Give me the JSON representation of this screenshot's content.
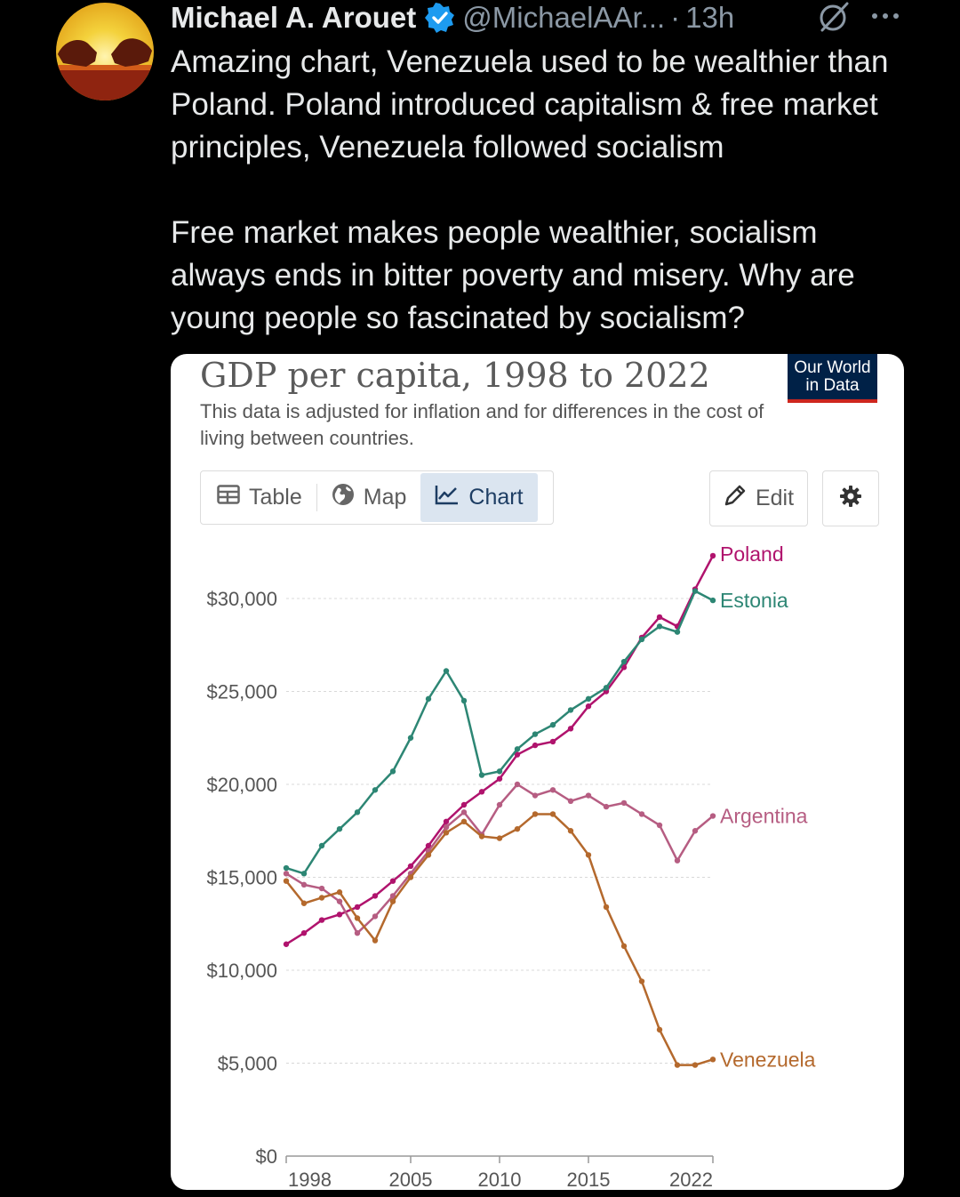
{
  "tweet": {
    "author_name": "Michael A. Arouet",
    "handle": "@MichaelAAr...",
    "separator": "·",
    "time": "13h",
    "text_paragraphs": [
      "Amazing chart, Venezuela used to be wealthier than Poland. Poland introduced capitalism & free market principles, Venezuela followed socialism",
      "Free market makes people wealthier, socialism always ends in bitter poverty and misery. Why are young people so fascinated by socialism?"
    ],
    "icons": [
      "avatar",
      "verified-badge-icon",
      "grok-icon",
      "more-icon"
    ]
  },
  "card": {
    "logo_line1": "Our World",
    "logo_line2": "in Data",
    "tabs": [
      {
        "label": "Table",
        "icon": "table-icon",
        "active": false
      },
      {
        "label": "Map",
        "icon": "globe-icon",
        "active": false
      },
      {
        "label": "Chart",
        "icon": "line-chart-icon",
        "active": true
      }
    ],
    "edit_label": "Edit",
    "settings_icon": "gear-icon"
  },
  "chart_data": {
    "type": "line",
    "title": "GDP per capita, 1998 to 2022",
    "subtitle": "This data is adjusted for inflation and for differences in the cost of living between countries.",
    "x": [
      1998,
      1999,
      2000,
      2001,
      2002,
      2003,
      2004,
      2005,
      2006,
      2007,
      2008,
      2009,
      2010,
      2011,
      2012,
      2013,
      2014,
      2015,
      2016,
      2017,
      2018,
      2019,
      2020,
      2021,
      2022
    ],
    "y_ticks": [
      0,
      5000,
      10000,
      15000,
      20000,
      25000,
      30000
    ],
    "y_tick_labels": [
      "$0",
      "$5,000",
      "$10,000",
      "$15,000",
      "$20,000",
      "$25,000",
      "$30,000"
    ],
    "x_ticks": [
      1998,
      2005,
      2010,
      2015,
      2022
    ],
    "ylim": [
      0,
      33000
    ],
    "grid": "horizontal dotted",
    "legend": "labels at line ends",
    "series": [
      {
        "name": "Poland",
        "color": "#b0136d",
        "values": [
          11400,
          12000,
          12700,
          13000,
          13400,
          14000,
          14800,
          15600,
          16700,
          18000,
          18900,
          19600,
          20300,
          21600,
          22100,
          22300,
          23000,
          24200,
          25000,
          26300,
          27900,
          29000,
          28500,
          30500,
          32300
        ]
      },
      {
        "name": "Estonia",
        "color": "#2d8674",
        "values": [
          15500,
          15200,
          16700,
          17600,
          18500,
          19700,
          20700,
          22500,
          24600,
          26100,
          24500,
          20500,
          20700,
          21900,
          22700,
          23200,
          24000,
          24600,
          25200,
          26600,
          27800,
          28500,
          28200,
          30400,
          29900
        ]
      },
      {
        "name": "Argentina",
        "color": "#b65d82",
        "values": [
          15200,
          14600,
          14400,
          13700,
          12000,
          12900,
          14000,
          15200,
          16400,
          17700,
          18500,
          17300,
          18900,
          20000,
          19400,
          19700,
          19100,
          19400,
          18800,
          19000,
          18400,
          17800,
          15900,
          17500,
          18300
        ]
      },
      {
        "name": "Venezuela",
        "color": "#b4692d",
        "values": [
          14800,
          13600,
          13900,
          14200,
          12800,
          11600,
          13700,
          15000,
          16200,
          17400,
          18000,
          17200,
          17100,
          17600,
          18400,
          18400,
          17500,
          16200,
          13400,
          11300,
          9400,
          6800,
          4900,
          4900,
          5200
        ]
      }
    ]
  }
}
